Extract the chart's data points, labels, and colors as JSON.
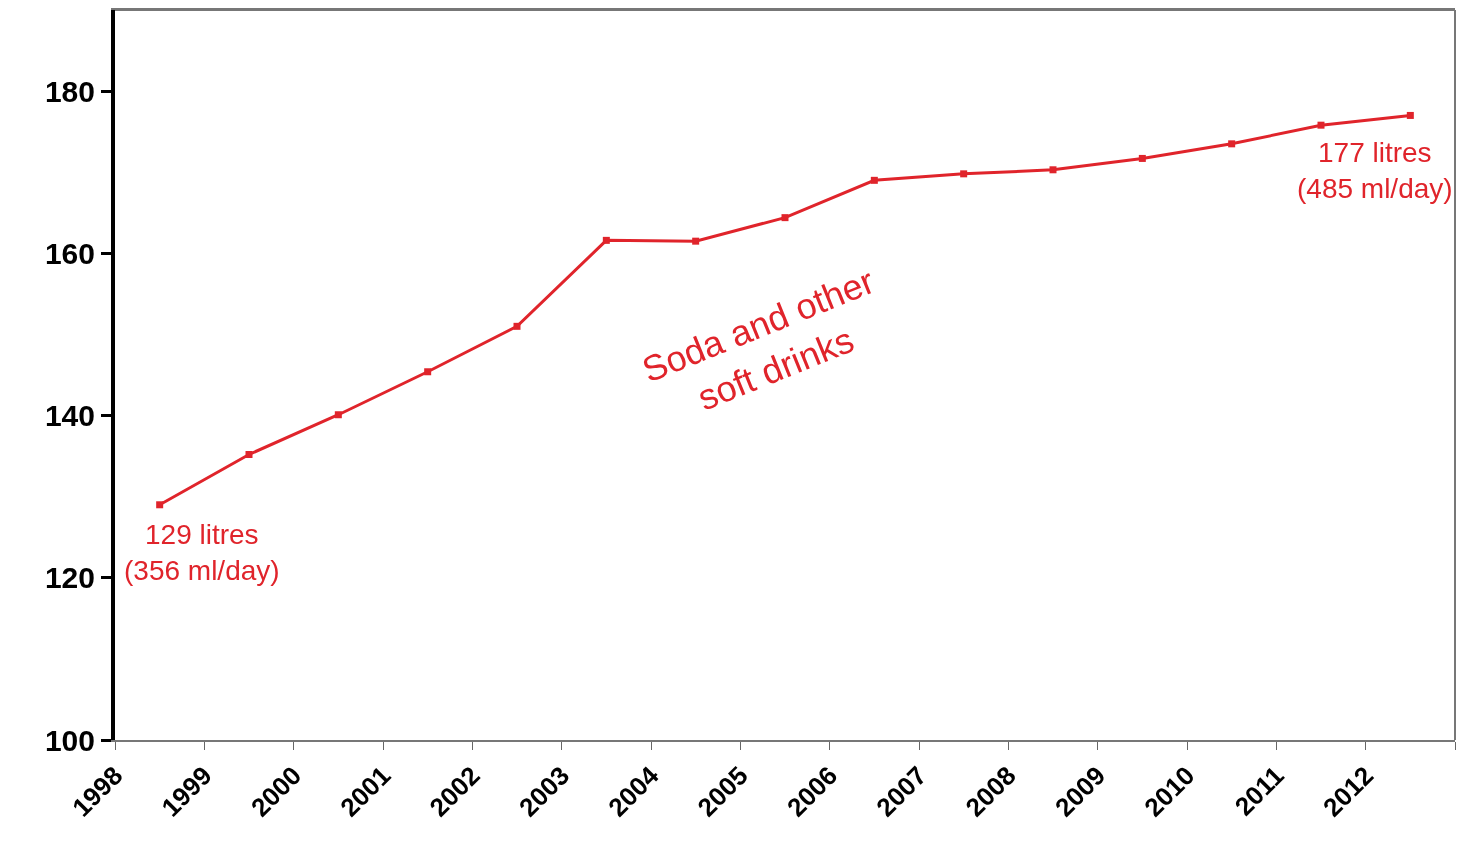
{
  "chart_data": {
    "type": "line",
    "x": [
      1998.5,
      1999.5,
      2000.5,
      2001.5,
      2002.5,
      2003.5,
      2004.5,
      2005.5,
      2006.5,
      2007.5,
      2008.5,
      2009.5,
      2010.5,
      2011.5,
      2012.5
    ],
    "series": [
      {
        "name": "Soda and other soft drinks",
        "color": "#e0242b",
        "values": [
          129,
          135.2,
          140.1,
          145.4,
          151.0,
          161.6,
          161.5,
          164.4,
          169.0,
          169.8,
          170.3,
          171.7,
          173.5,
          175.8,
          177
        ]
      }
    ],
    "annotations": [
      {
        "text": "129 litres\n(356 ml/day)",
        "x": 1998.5,
        "y": 129
      },
      {
        "text": "177 litres\n(485 ml/day)",
        "x": 2012.5,
        "y": 177
      }
    ],
    "xlim": [
      1998,
      2013
    ],
    "xticks": [
      1998,
      1999,
      2000,
      2001,
      2002,
      2003,
      2004,
      2005,
      2006,
      2007,
      2008,
      2009,
      2010,
      2011,
      2012,
      {
        "value": 2013,
        "label": null
      }
    ],
    "ylim": [
      100,
      190
    ],
    "yticks": [
      100,
      120,
      140,
      160,
      180
    ],
    "legend": false,
    "marker": "square",
    "line_style": "solid"
  }
}
